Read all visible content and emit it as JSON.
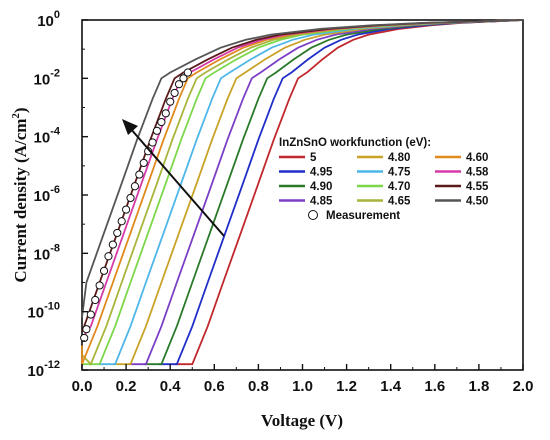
{
  "chart_data": {
    "type": "line",
    "xlabel": "Voltage (V)",
    "ylabel_main": "Current density (A/cm",
    "ylabel_sup": "2",
    "ylabel_close": ")",
    "xlim": [
      0.0,
      2.0
    ],
    "ylim_log10": [
      -12,
      0
    ],
    "y_scale": "log",
    "grid": false,
    "legend_title": "InZnSnO workfunction (eV):",
    "legend_placement": "center-right",
    "x_ticks": [
      "0.0",
      "0.2",
      "0.4",
      "0.6",
      "0.8",
      "1.0",
      "1.2",
      "1.4",
      "1.6",
      "1.8",
      "2.0"
    ],
    "y_ticks": [
      {
        "base": "10",
        "exp": "0",
        "log10": 0
      },
      {
        "base": "10",
        "exp": "-2",
        "log10": -2
      },
      {
        "base": "10",
        "exp": "-4",
        "log10": -4
      },
      {
        "base": "10",
        "exp": "-6",
        "log10": -6
      },
      {
        "base": "10",
        "exp": "-8",
        "log10": -8
      },
      {
        "base": "10",
        "exp": "-10",
        "log10": -10
      },
      {
        "base": "10",
        "exp": "-12",
        "log10": -12
      }
    ],
    "series": [
      {
        "name": "5",
        "color": "#c0282d",
        "shift": 0.42
      },
      {
        "name": "4.95",
        "color": "#1f2fc8",
        "shift": 0.35
      },
      {
        "name": "4.90",
        "color": "#2a7a2a",
        "shift": 0.28
      },
      {
        "name": "4.85",
        "color": "#7b3fc6",
        "shift": 0.21
      },
      {
        "name": "4.80",
        "color": "#c9a227",
        "shift": 0.14
      },
      {
        "name": "4.75",
        "color": "#4fb6e8",
        "shift": 0.07
      },
      {
        "name": "4.70",
        "color": "#7cd84a",
        "shift": 0.0
      },
      {
        "name": "4.65",
        "color": "#a8b43a",
        "shift": -0.04
      },
      {
        "name": "4.60",
        "color": "#e08a1e",
        "shift": -0.08
      },
      {
        "name": "4.58",
        "color": "#d63aa8",
        "shift": -0.11
      },
      {
        "name": "4.55",
        "color": "#5a1a1a",
        "shift": -0.14
      },
      {
        "name": "4.50",
        "color": "#555555",
        "shift": -0.2
      }
    ],
    "base_curve": {
      "x": [
        0.0,
        0.08,
        0.15,
        0.22,
        0.3,
        0.38,
        0.45,
        0.52,
        0.56,
        0.6,
        0.7,
        0.8,
        0.9,
        1.0,
        1.2,
        1.4,
        1.6,
        1.8,
        2.0
      ],
      "log10y": [
        -11.8,
        -11.8,
        -10.5,
        -9.0,
        -7.3,
        -5.6,
        -4.1,
        -2.7,
        -2.0,
        -1.8,
        -1.35,
        -0.95,
        -0.68,
        -0.5,
        -0.3,
        -0.18,
        -0.1,
        -0.05,
        0.0
      ]
    },
    "measurement": {
      "name": "Measurement",
      "x": [
        0.01,
        0.02,
        0.04,
        0.06,
        0.08,
        0.1,
        0.12,
        0.14,
        0.16,
        0.18,
        0.2,
        0.22,
        0.24,
        0.26,
        0.28,
        0.3,
        0.32,
        0.34,
        0.36,
        0.38,
        0.4,
        0.42,
        0.44,
        0.46,
        0.48
      ],
      "log10y": [
        -10.9,
        -10.6,
        -10.1,
        -9.6,
        -9.1,
        -8.6,
        -8.1,
        -7.7,
        -7.3,
        -6.9,
        -6.5,
        -6.1,
        -5.7,
        -5.3,
        -4.9,
        -4.5,
        -4.2,
        -3.8,
        -3.5,
        -3.2,
        -2.8,
        -2.5,
        -2.2,
        -2.0,
        -1.8
      ]
    }
  }
}
